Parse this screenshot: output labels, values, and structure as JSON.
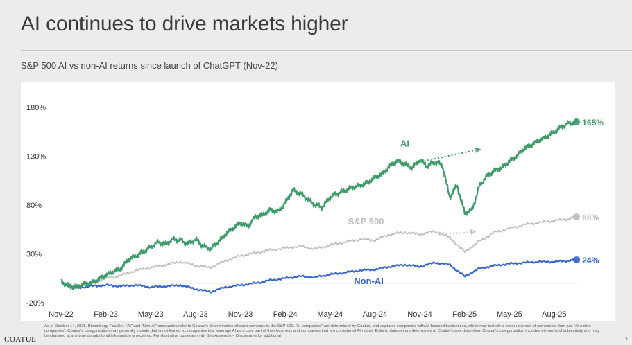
{
  "page": {
    "title": "AI continues to drive markets higher",
    "subtitle": "S&P 500 AI vs non-AI returns since launch of ChatGPT (Nov-22)",
    "footnote": "As of October 14, 2025. Bloomberg, FactSet. \"AI\" and \"Non-AI\" companies refer to Coatue's determination of each company in the S&P 500. \"AI companies\" are determined by Coatue, and captures companies with AI-focused businesses, which may include a wider universe of companies than just \"AI native companies\". Coatue's categorization may generally include, but is not limited to, companies that leverage AI as a core part of their business and companies that are considered AI-native. Edits to data set are determined at Coatue's sole discretion. Coatue's categorization includes elements of subjectivity and may be changed at any time as additional information is received. For illustrative purposes only. See Appendix – Disclosures for additional",
    "logo": "COATUE",
    "page_number": "4"
  },
  "colors": {
    "ai": "#3f9c6a",
    "sp500": "#bdbdbd",
    "nonai": "#3565cf",
    "baseline": "#d0d0d0"
  },
  "chart_data": {
    "type": "line",
    "title": "S&P 500 AI vs non-AI returns since launch of ChatGPT (Nov-22)",
    "xlabel": "",
    "ylabel": "",
    "ylim": [
      -20,
      180
    ],
    "yticks": [
      "180%",
      "130%",
      "80%",
      "30%",
      "-20%"
    ],
    "ytick_values": [
      180,
      130,
      80,
      30,
      -20
    ],
    "xticks": [
      "Nov-22",
      "Feb-23",
      "May-23",
      "Aug-23",
      "Nov-23",
      "Feb-24",
      "May-24",
      "Aug-24",
      "Nov-24",
      "Feb-25",
      "May-25",
      "Aug-25"
    ],
    "x_range": [
      0,
      35
    ],
    "baseline": 0,
    "series": [
      {
        "name": "AI",
        "label": "AI",
        "end_label": "165%",
        "x": [
          0,
          0.5,
          1,
          1.5,
          2,
          2.5,
          3,
          3.5,
          4,
          4.5,
          5,
          5.5,
          6,
          6.5,
          7,
          7.5,
          8,
          8.5,
          9,
          9.5,
          10,
          10.5,
          11,
          11.5,
          12,
          12.5,
          13,
          13.5,
          14,
          14.5,
          15,
          15.5,
          16,
          16.5,
          17,
          17.5,
          18,
          18.5,
          19,
          19.5,
          20,
          20.5,
          21,
          21.5,
          22,
          22.5,
          23,
          23.5,
          24,
          24.5,
          25,
          25.5,
          26,
          26.5,
          27,
          27.5,
          28,
          28.5,
          29,
          29.5,
          30,
          30.5,
          31,
          31.5,
          32,
          32.5,
          33,
          33.5,
          34,
          34.5
        ],
        "values": [
          2,
          -3,
          -4,
          -1,
          0,
          4,
          8,
          12,
          15,
          24,
          28,
          32,
          37,
          42,
          40,
          45,
          44,
          40,
          45,
          38,
          35,
          42,
          50,
          56,
          62,
          58,
          68,
          70,
          75,
          73,
          82,
          95,
          92,
          86,
          80,
          78,
          88,
          92,
          95,
          98,
          100,
          103,
          108,
          112,
          120,
          125,
          122,
          118,
          126,
          120,
          124,
          121,
          88,
          100,
          72,
          75,
          100,
          110,
          115,
          118,
          125,
          130,
          138,
          142,
          146,
          150,
          155,
          160,
          164,
          165
        ]
      },
      {
        "name": "S&P 500",
        "label": "S&P 500",
        "end_label": "68%",
        "x": [
          0,
          1,
          2,
          3,
          4,
          5,
          6,
          7,
          8,
          9,
          10,
          11,
          12,
          13,
          14,
          15,
          16,
          17,
          18,
          19,
          20,
          21,
          22,
          23,
          24,
          25,
          26,
          27,
          28,
          29,
          30,
          31,
          32,
          33,
          34,
          34.5
        ],
        "values": [
          1,
          -3,
          0,
          5,
          8,
          13,
          16,
          19,
          22,
          18,
          16,
          23,
          28,
          31,
          34,
          36,
          38,
          35,
          39,
          42,
          45,
          44,
          50,
          52,
          50,
          53,
          47,
          32,
          43,
          52,
          56,
          60,
          62,
          64,
          66,
          68
        ]
      },
      {
        "name": "Non-AI",
        "label": "Non-AI",
        "end_label": "24%",
        "x": [
          0,
          1,
          2,
          3,
          4,
          5,
          6,
          7,
          8,
          9,
          10,
          11,
          12,
          13,
          14,
          15,
          16,
          17,
          18,
          19,
          20,
          21,
          22,
          23,
          24,
          25,
          26,
          27,
          28,
          29,
          30,
          31,
          32,
          33,
          34,
          34.5
        ],
        "values": [
          0,
          -5,
          -3,
          -2,
          -3,
          -2,
          -4,
          -3,
          -2,
          -6,
          -9,
          -4,
          -2,
          0,
          3,
          5,
          7,
          6,
          9,
          11,
          13,
          14,
          17,
          19,
          17,
          21,
          19,
          7,
          15,
          18,
          20,
          21,
          22,
          22,
          23,
          24
        ]
      }
    ],
    "annotations": [
      {
        "label": "AI gap arrow",
        "series": "AI",
        "from_x": 24.3,
        "to_x": 28.0,
        "from_y": 125,
        "to_y": 137
      },
      {
        "label": "S&P 500 gap arrow",
        "series": "S&P 500",
        "from_x": 25.3,
        "to_x": 27.7,
        "from_y": 52,
        "to_y": 53
      }
    ]
  }
}
